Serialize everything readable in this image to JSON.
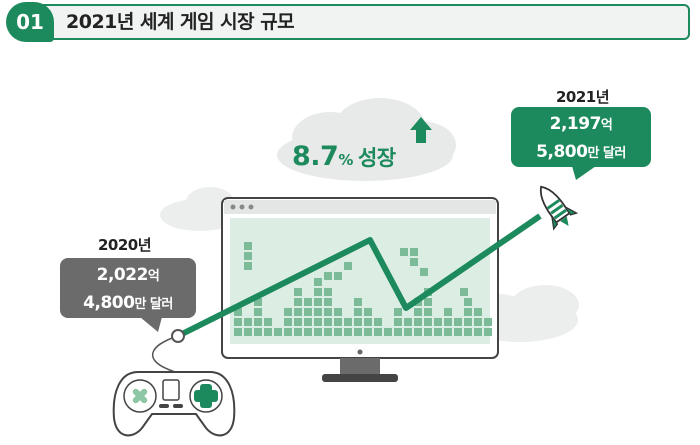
{
  "header": {
    "number": "01",
    "title": "2021년 세계 게임 시장 규모"
  },
  "year_2020": {
    "label": "2020년",
    "line1_value": "2,022",
    "line1_unit": "억",
    "line2_value": "4,800",
    "line2_unit": "만 달러"
  },
  "year_2021": {
    "label": "2021년",
    "line1_value": "2,197",
    "line1_unit": "억",
    "line2_value": "5,800",
    "line2_unit": "만 달러"
  },
  "growth": {
    "value": "8.7",
    "unit": "%",
    "word": "성장"
  },
  "colors": {
    "accent": "#1c8a5c",
    "gray": "#6b6b6b",
    "screen": "#dceee3",
    "cloud": "#e8eae9"
  },
  "icons": [
    "up-arrow-icon",
    "rocket-icon",
    "game-controller-icon",
    "monitor-icon",
    "cloud-icon"
  ]
}
